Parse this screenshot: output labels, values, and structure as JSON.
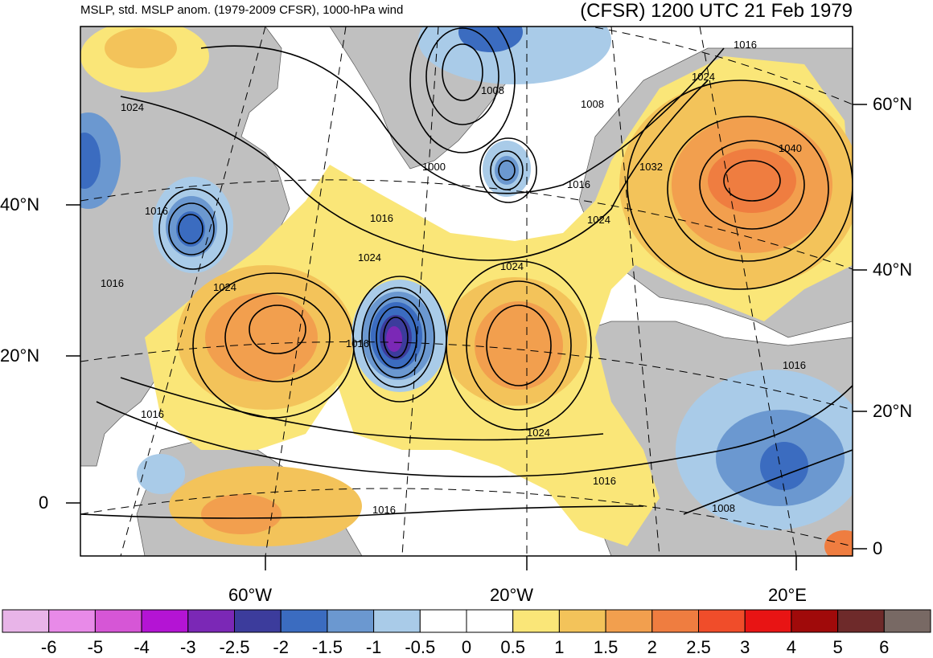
{
  "title_left": "MSLP, std. MSLP anom. (1979-2009 CFSR), 1000-hPa wind",
  "title_right": "(CFSR) 1200 UTC 21 Feb 1979",
  "lat_labels_left": [
    {
      "text": "40°N",
      "lat": 40
    },
    {
      "text": "20°N",
      "lat": 20
    },
    {
      "text": "0",
      "lat": 0
    }
  ],
  "lat_labels_right": [
    {
      "text": "60°N",
      "lat": 60
    },
    {
      "text": "40°N",
      "lat": 40
    },
    {
      "text": "20°N",
      "lat": 20
    },
    {
      "text": "0",
      "lat": 0
    }
  ],
  "lon_labels": [
    {
      "text": "60°W",
      "lon": -60
    },
    {
      "text": "20°W",
      "lon": -20
    },
    {
      "text": "20°E",
      "lon": 20
    }
  ],
  "contour_labels": [
    "1024",
    "1016",
    "1016",
    "1024",
    "1024",
    "1016",
    "1016",
    "1016",
    "1000",
    "1008",
    "1008",
    "1016",
    "1016",
    "1024",
    "1024",
    "1024",
    "1024",
    "1032",
    "1040",
    "1016",
    "1016",
    "1016",
    "1008"
  ],
  "colors": {
    "land": "#c0c0c0",
    "ocean": "#ffffff"
  },
  "colorbar": {
    "colors": [
      "#e8b4e8",
      "#e88ae8",
      "#d656d6",
      "#b414d4",
      "#7b28b6",
      "#3c3c9c",
      "#3b6cc0",
      "#6b98d0",
      "#a9cbe8",
      "#ffffff",
      "#ffffff",
      "#fae678",
      "#f3c35a",
      "#f29f4e",
      "#ef7d40",
      "#f04d2a",
      "#e81414",
      "#a00a0a",
      "#6e2a2a",
      "#786964"
    ],
    "labels": [
      "-6",
      "-5",
      "-4",
      "-3",
      "-2.5",
      "-2",
      "-1.5",
      "-1",
      "-0.5",
      "0",
      "0.5",
      "1",
      "1.5",
      "2",
      "2.5",
      "3",
      "4",
      "5",
      "6"
    ]
  }
}
